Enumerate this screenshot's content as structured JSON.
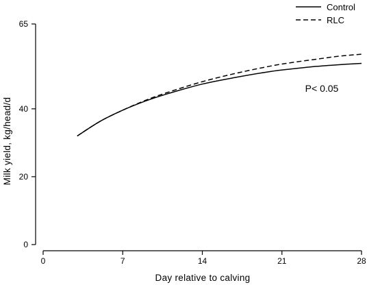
{
  "chart_data": {
    "type": "line",
    "title": "",
    "xlabel": "Day relative to calving",
    "ylabel": "Milk yield, kg/head/d",
    "xlim": [
      0,
      28
    ],
    "ylim": [
      0,
      65
    ],
    "x_ticks": [
      0,
      7,
      14,
      21,
      28
    ],
    "y_ticks": [
      0,
      20,
      40,
      65
    ],
    "grid": false,
    "legend_position": "top-right",
    "annotation": "P< 0.05",
    "series": [
      {
        "name": "Control",
        "style": "solid",
        "color": "#000000",
        "x": [
          3,
          5,
          7,
          9,
          11,
          14,
          17,
          20,
          22,
          24,
          26,
          28
        ],
        "y": [
          32.0,
          36.3,
          39.6,
          42.3,
          44.5,
          47.3,
          49.3,
          51.0,
          51.8,
          52.5,
          53.0,
          53.4
        ]
      },
      {
        "name": "RLC",
        "style": "dashed",
        "color": "#000000",
        "x": [
          3,
          5,
          7,
          9,
          11,
          14,
          17,
          20,
          22,
          24,
          26,
          28
        ],
        "y": [
          32.0,
          36.3,
          39.6,
          42.5,
          44.9,
          48.0,
          50.5,
          52.6,
          53.7,
          54.6,
          55.5,
          56.1
        ]
      }
    ]
  }
}
